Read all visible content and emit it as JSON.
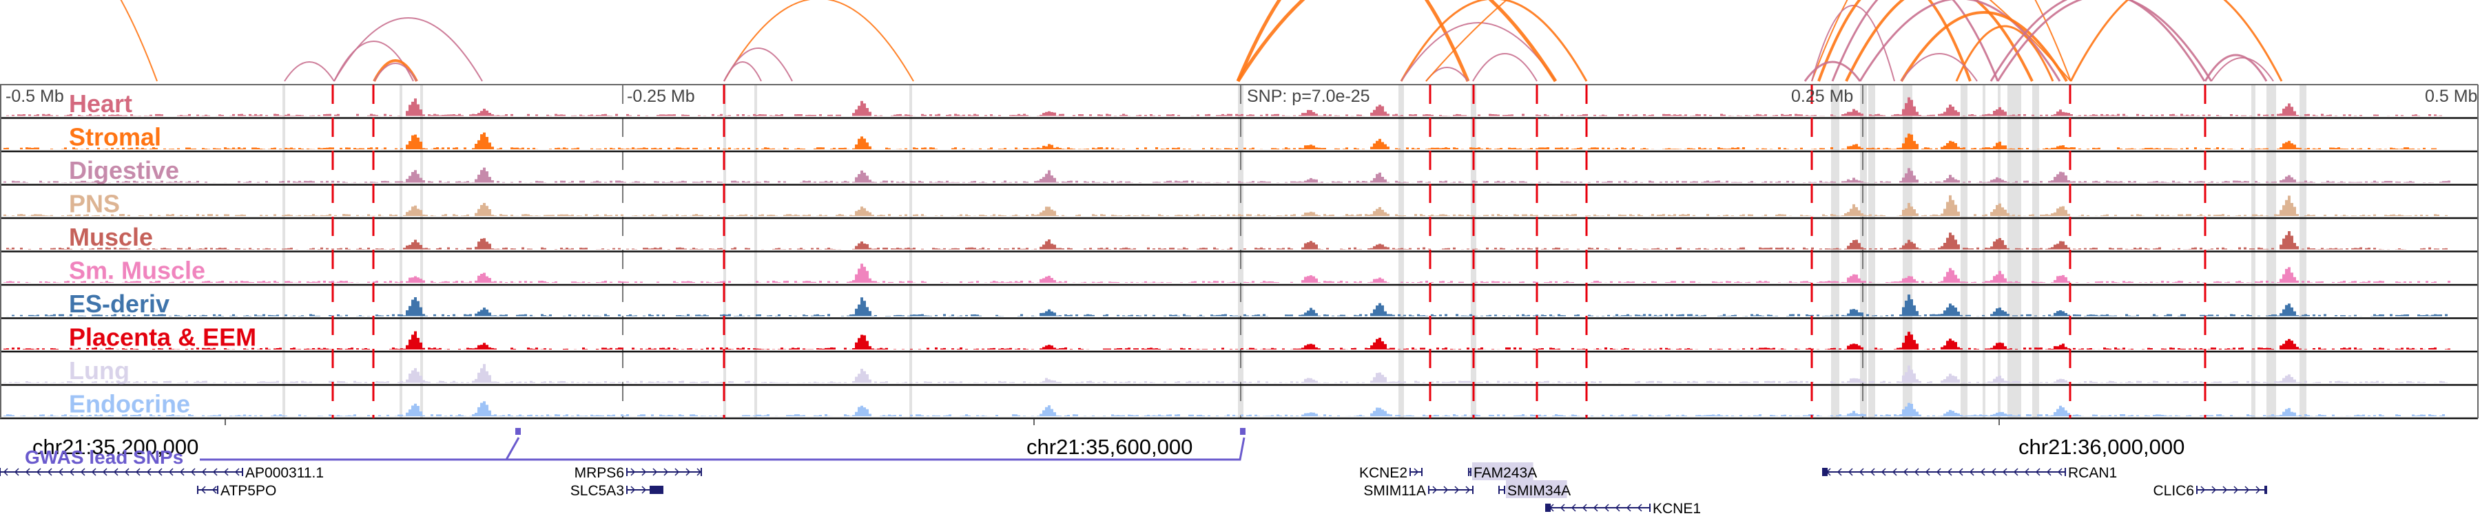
{
  "view": {
    "chrom": "chr21",
    "relative_axis": {
      "labels": [
        "-0.5 Mb",
        "-0.25 Mb",
        "0.25 Mb",
        "0.5 Mb"
      ]
    },
    "snp_label": "SNP: p=7.0e-25",
    "coordinate_ticks": [
      "chr21:35,200,000",
      "chr21:35,600,000",
      "chr21:36,000,000"
    ]
  },
  "tracks": [
    {
      "name": "Heart",
      "color": "#d4697e"
    },
    {
      "name": "Stromal",
      "color": "#ff7514"
    },
    {
      "name": "Digestive",
      "color": "#c68aab"
    },
    {
      "name": "PNS",
      "color": "#ddb493"
    },
    {
      "name": "Muscle",
      "color": "#c5615a"
    },
    {
      "name": "Sm. Muscle",
      "color": "#f084be"
    },
    {
      "name": "ES-deriv",
      "color": "#3f74ab"
    },
    {
      "name": "Placenta & EEM",
      "color": "#e3000d"
    },
    {
      "name": "Lung",
      "color": "#d9d3ea"
    },
    {
      "name": "Endocrine",
      "color": "#9ec3f7"
    }
  ],
  "gwas": {
    "title": "GWAS lead SNPs",
    "color": "#6a5acd"
  },
  "genes": [
    {
      "name": "AP000311.1",
      "strand": "-"
    },
    {
      "name": "ATP5PO",
      "strand": "-"
    },
    {
      "name": "MRPS6",
      "strand": "+"
    },
    {
      "name": "SLC5A3",
      "strand": "+"
    },
    {
      "name": "KCNE2",
      "strand": "+"
    },
    {
      "name": "SMIM11A",
      "strand": "+"
    },
    {
      "name": "FAM243A",
      "strand": "-",
      "highlighted": true
    },
    {
      "name": "SMIM34A",
      "strand": "-",
      "highlighted": true
    },
    {
      "name": "KCNE1",
      "strand": "-"
    },
    {
      "name": "RCAN1",
      "strand": "-"
    },
    {
      "name": "CLIC6",
      "strand": "+"
    }
  ],
  "colors": {
    "loop_orange": "#ff7514",
    "loop_pink": "#c9708f",
    "enhancer_red": "#e8000d",
    "highlight_gray": "#e2e2e2",
    "gene_navy": "#1c1c6e",
    "gene_highlight": "#d8d4ea"
  }
}
